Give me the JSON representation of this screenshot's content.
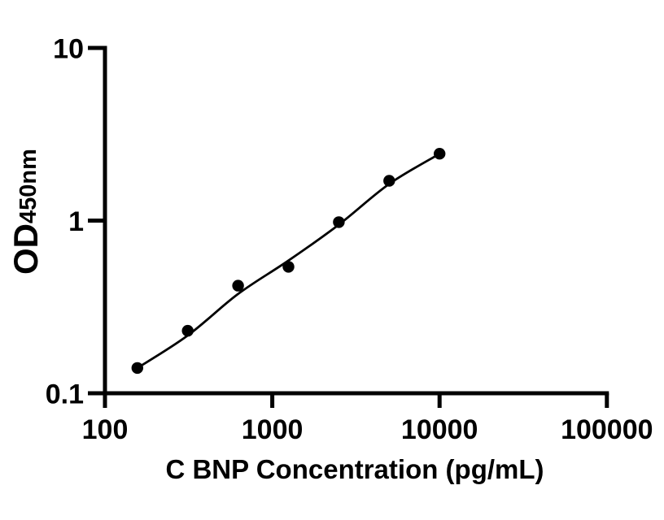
{
  "figure": {
    "background": "#ffffff",
    "ink": "#000000"
  },
  "chart_data": {
    "type": "scatter",
    "title": "",
    "xlabel": "C BNP Concentration (pg/mL)",
    "ylabel_main": "OD",
    "ylabel_sub": "450nm",
    "x_scale": "log",
    "y_scale": "log",
    "xlim": [
      100,
      100000
    ],
    "ylim": [
      0.1,
      10
    ],
    "x_ticks": [
      100,
      1000,
      10000,
      100000
    ],
    "x_tick_labels": [
      "100",
      "1000",
      "10000",
      "100000"
    ],
    "y_ticks": [
      0.1,
      1,
      10
    ],
    "y_tick_labels": [
      "0.1",
      "1",
      "10"
    ],
    "grid": false,
    "legend": false,
    "marker_color": "#000000",
    "line_color": "#000000",
    "series": [
      {
        "name": "standard-data-points",
        "type": "scatter",
        "marker": "circle",
        "x": [
          156.25,
          312.5,
          625,
          1250,
          2500,
          5000,
          10000
        ],
        "y": [
          0.14,
          0.23,
          0.42,
          0.54,
          0.98,
          1.7,
          2.44
        ]
      },
      {
        "name": "fitted-standard-curve",
        "type": "line",
        "x": [
          156.25,
          312.5,
          625,
          1250,
          2500,
          5000,
          10000
        ],
        "y": [
          0.14,
          0.216,
          0.376,
          0.587,
          0.947,
          1.63,
          2.437
        ]
      }
    ]
  }
}
